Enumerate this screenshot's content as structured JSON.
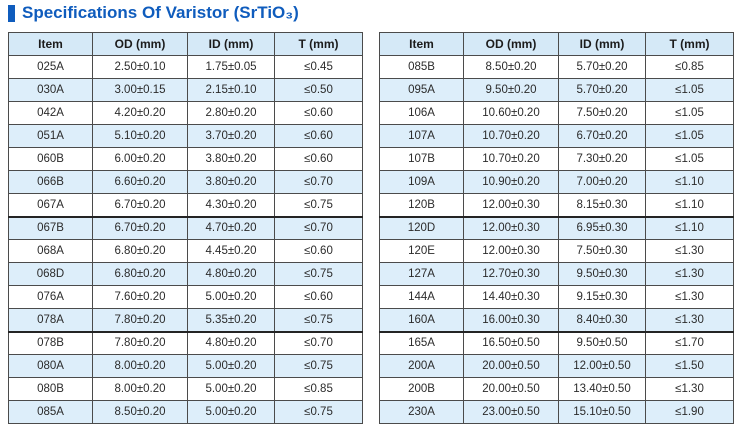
{
  "title": "Specifications Of Varistor (SrTiO₃)",
  "colors": {
    "accent": "#0f5cbd",
    "header_bg": "#d5e9f7",
    "stripe_bg": "#ddeefa",
    "border": "#4b4b4b",
    "text": "#2b2b2b"
  },
  "section_break_rows": [
    7,
    12
  ],
  "tables": [
    {
      "name": "left",
      "headers": [
        "Item",
        "OD (mm)",
        "ID (mm)",
        "T (mm)"
      ],
      "rows": [
        [
          "025A",
          "2.50±0.10",
          "1.75±0.05",
          "≤0.45"
        ],
        [
          "030A",
          "3.00±0.15",
          "2.15±0.10",
          "≤0.50"
        ],
        [
          "042A",
          "4.20±0.20",
          "2.80±0.20",
          "≤0.60"
        ],
        [
          "051A",
          "5.10±0.20",
          "3.70±0.20",
          "≤0.60"
        ],
        [
          "060B",
          "6.00±0.20",
          "3.80±0.20",
          "≤0.60"
        ],
        [
          "066B",
          "6.60±0.20",
          "3.80±0.20",
          "≤0.70"
        ],
        [
          "067A",
          "6.70±0.20",
          "4.30±0.20",
          "≤0.75"
        ],
        [
          "067B",
          "6.70±0.20",
          "4.70±0.20",
          "≤0.70"
        ],
        [
          "068A",
          "6.80±0.20",
          "4.45±0.20",
          "≤0.60"
        ],
        [
          "068D",
          "6.80±0.20",
          "4.80±0.20",
          "≤0.75"
        ],
        [
          "076A",
          "7.60±0.20",
          "5.00±0.20",
          "≤0.60"
        ],
        [
          "078A",
          "7.80±0.20",
          "5.35±0.20",
          "≤0.75"
        ],
        [
          "078B",
          "7.80±0.20",
          "4.80±0.20",
          "≤0.70"
        ],
        [
          "080A",
          "8.00±0.20",
          "5.00±0.20",
          "≤0.75"
        ],
        [
          "080B",
          "8.00±0.20",
          "5.00±0.20",
          "≤0.85"
        ],
        [
          "085A",
          "8.50±0.20",
          "5.00±0.20",
          "≤0.75"
        ]
      ]
    },
    {
      "name": "right",
      "headers": [
        "Item",
        "OD (mm)",
        "ID (mm)",
        "T (mm)"
      ],
      "rows": [
        [
          "085B",
          "8.50±0.20",
          "5.70±0.20",
          "≤0.85"
        ],
        [
          "095A",
          "9.50±0.20",
          "5.70±0.20",
          "≤1.05"
        ],
        [
          "106A",
          "10.60±0.20",
          "7.50±0.20",
          "≤1.05"
        ],
        [
          "107A",
          "10.70±0.20",
          "6.70±0.20",
          "≤1.05"
        ],
        [
          "107B",
          "10.70±0.20",
          "7.30±0.20",
          "≤1.05"
        ],
        [
          "109A",
          "10.90±0.20",
          "7.00±0.20",
          "≤1.10"
        ],
        [
          "120B",
          "12.00±0.30",
          "8.15±0.30",
          "≤1.10"
        ],
        [
          "120D",
          "12.00±0.30",
          "6.95±0.30",
          "≤1.10"
        ],
        [
          "120E",
          "12.00±0.30",
          "7.50±0.30",
          "≤1.30"
        ],
        [
          "127A",
          "12.70±0.30",
          "9.50±0.30",
          "≤1.30"
        ],
        [
          "144A",
          "14.40±0.30",
          "9.15±0.30",
          "≤1.30"
        ],
        [
          "160A",
          "16.00±0.30",
          "8.40±0.30",
          "≤1.30"
        ],
        [
          "165A",
          "16.50±0.50",
          "9.50±0.50",
          "≤1.70"
        ],
        [
          "200A",
          "20.00±0.50",
          "12.00±0.50",
          "≤1.50"
        ],
        [
          "200B",
          "20.00±0.50",
          "13.40±0.50",
          "≤1.30"
        ],
        [
          "230A",
          "23.00±0.50",
          "15.10±0.50",
          "≤1.90"
        ]
      ]
    }
  ]
}
